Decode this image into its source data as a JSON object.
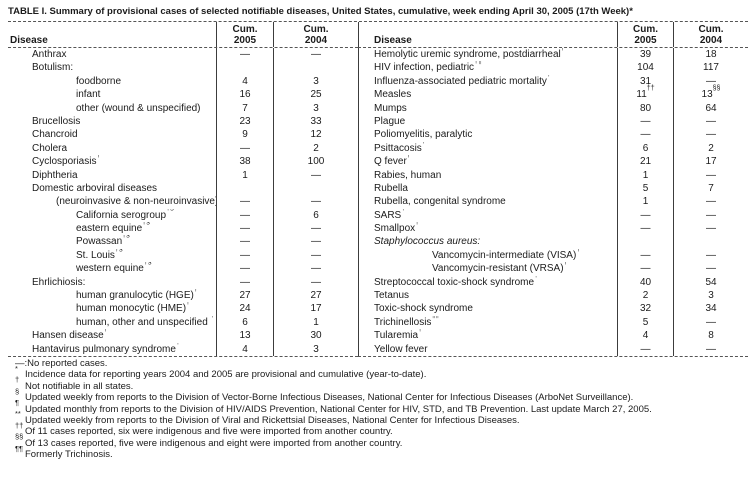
{
  "title": "TABLE I. Summary of provisional cases of selected notifiable diseases, United States, cumulative, week ending April 30, 2005 (17th Week)*",
  "header": {
    "disease": "Disease",
    "cum": "Cum.",
    "y2005": "2005",
    "y2004": "2004"
  },
  "left_rows": [
    {
      "label": "Anthrax",
      "sup": "",
      "indent": 0,
      "italic": false,
      "c2005": "—",
      "c2005_sup": "",
      "c2004": "—",
      "c2004_sup": ""
    },
    {
      "label": "Botulism:",
      "sup": "",
      "indent": 0,
      "italic": false,
      "c2005": "",
      "c2005_sup": "",
      "c2004": "",
      "c2004_sup": ""
    },
    {
      "label": "foodborne",
      "sup": "",
      "indent": 2,
      "italic": false,
      "c2005": "4",
      "c2005_sup": "",
      "c2004": "3",
      "c2004_sup": ""
    },
    {
      "label": "infant",
      "sup": "",
      "indent": 2,
      "italic": false,
      "c2005": "16",
      "c2005_sup": "",
      "c2004": "25",
      "c2004_sup": ""
    },
    {
      "label": "other (wound & unspecified)",
      "sup": "",
      "indent": 2,
      "italic": false,
      "c2005": "7",
      "c2005_sup": "",
      "c2004": "3",
      "c2004_sup": ""
    },
    {
      "label": "Brucellosis",
      "sup": "",
      "indent": 0,
      "italic": false,
      "c2005": "23",
      "c2005_sup": "",
      "c2004": "33",
      "c2004_sup": ""
    },
    {
      "label": "Chancroid",
      "sup": "",
      "indent": 0,
      "italic": false,
      "c2005": "9",
      "c2005_sup": "",
      "c2004": "12",
      "c2004_sup": ""
    },
    {
      "label": "Cholera",
      "sup": "",
      "indent": 0,
      "italic": false,
      "c2005": "—",
      "c2005_sup": "",
      "c2004": "2",
      "c2004_sup": ""
    },
    {
      "label": "Cyclosporiasis",
      "sup": "†",
      "indent": 0,
      "italic": false,
      "c2005": "38",
      "c2005_sup": "",
      "c2004": "100",
      "c2004_sup": ""
    },
    {
      "label": "Diphtheria",
      "sup": "",
      "indent": 0,
      "italic": false,
      "c2005": "1",
      "c2005_sup": "",
      "c2004": "—",
      "c2004_sup": ""
    },
    {
      "label": "Domestic arboviral diseases",
      "sup": "",
      "indent": 0,
      "italic": false,
      "c2005": "",
      "c2005_sup": "",
      "c2004": "",
      "c2004_sup": ""
    },
    {
      "label": "(neuroinvasive & non-neuroinvasive):",
      "sup": "",
      "indent": 1,
      "italic": false,
      "c2005": "—",
      "c2005_sup": "",
      "c2004": "—",
      "c2004_sup": ""
    },
    {
      "label": "California serogroup",
      "sup": "†§",
      "indent": 2,
      "italic": false,
      "c2005": "—",
      "c2005_sup": "",
      "c2004": "6",
      "c2004_sup": ""
    },
    {
      "label": "eastern equine",
      "sup": "†§",
      "indent": 2,
      "italic": false,
      "c2005": "—",
      "c2005_sup": "",
      "c2004": "—",
      "c2004_sup": ""
    },
    {
      "label": "Powassan",
      "sup": "†§",
      "indent": 2,
      "italic": false,
      "c2005": "—",
      "c2005_sup": "",
      "c2004": "—",
      "c2004_sup": ""
    },
    {
      "label": "St. Louis",
      "sup": "†§",
      "indent": 2,
      "italic": false,
      "c2005": "—",
      "c2005_sup": "",
      "c2004": "—",
      "c2004_sup": ""
    },
    {
      "label": "western equine",
      "sup": "†§",
      "indent": 2,
      "italic": false,
      "c2005": "—",
      "c2005_sup": "",
      "c2004": "—",
      "c2004_sup": ""
    },
    {
      "label": "Ehrlichiosis:",
      "sup": "",
      "indent": 0,
      "italic": false,
      "c2005": "—",
      "c2005_sup": "",
      "c2004": "—",
      "c2004_sup": ""
    },
    {
      "label": "human granulocytic (HGE)",
      "sup": "†",
      "indent": 2,
      "italic": false,
      "c2005": "27",
      "c2005_sup": "",
      "c2004": "27",
      "c2004_sup": ""
    },
    {
      "label": "human monocytic (HME)",
      "sup": "†",
      "indent": 2,
      "italic": false,
      "c2005": "24",
      "c2005_sup": "",
      "c2004": "17",
      "c2004_sup": ""
    },
    {
      "label": "human, other and unspecified ",
      "sup": "†",
      "indent": 2,
      "italic": false,
      "c2005": "6",
      "c2005_sup": "",
      "c2004": "1",
      "c2004_sup": ""
    },
    {
      "label": "Hansen disease",
      "sup": "†",
      "indent": 0,
      "italic": false,
      "c2005": "13",
      "c2005_sup": "",
      "c2004": "30",
      "c2004_sup": ""
    },
    {
      "label": "Hantavirus pulmonary syndrome",
      "sup": "†",
      "indent": 0,
      "italic": false,
      "c2005": "4",
      "c2005_sup": "",
      "c2004": "3",
      "c2004_sup": ""
    }
  ],
  "right_rows": [
    {
      "label": "Hemolytic uremic syndrome, postdiarrheal",
      "sup": "†",
      "indent": 0,
      "italic": false,
      "c2005": "39",
      "c2005_sup": "",
      "c2004": "18",
      "c2004_sup": ""
    },
    {
      "label": "HIV infection, pediatric",
      "sup": "†¶",
      "indent": 0,
      "italic": false,
      "c2005": "104",
      "c2005_sup": "",
      "c2004": "117",
      "c2004_sup": ""
    },
    {
      "label": "Influenza-associated pediatric mortality",
      "sup": "†**",
      "indent": 0,
      "italic": false,
      "c2005": "31",
      "c2005_sup": "",
      "c2004": "—",
      "c2004_sup": ""
    },
    {
      "label": "Measles",
      "sup": "",
      "indent": 0,
      "italic": false,
      "c2005": "11",
      "c2005_sup": "††",
      "c2004": "13",
      "c2004_sup": "§§"
    },
    {
      "label": "Mumps",
      "sup": "",
      "indent": 0,
      "italic": false,
      "c2005": "80",
      "c2005_sup": "",
      "c2004": "64",
      "c2004_sup": ""
    },
    {
      "label": "Plague",
      "sup": "",
      "indent": 0,
      "italic": false,
      "c2005": "—",
      "c2005_sup": "",
      "c2004": "—",
      "c2004_sup": ""
    },
    {
      "label": "Poliomyelitis, paralytic",
      "sup": "",
      "indent": 0,
      "italic": false,
      "c2005": "—",
      "c2005_sup": "",
      "c2004": "—",
      "c2004_sup": ""
    },
    {
      "label": "Psittacosis",
      "sup": "†",
      "indent": 0,
      "italic": false,
      "c2005": "6",
      "c2005_sup": "",
      "c2004": "2",
      "c2004_sup": ""
    },
    {
      "label": "Q fever",
      "sup": "†",
      "indent": 0,
      "italic": false,
      "c2005": "21",
      "c2005_sup": "",
      "c2004": "17",
      "c2004_sup": ""
    },
    {
      "label": "Rabies, human",
      "sup": "",
      "indent": 0,
      "italic": false,
      "c2005": "1",
      "c2005_sup": "",
      "c2004": "—",
      "c2004_sup": ""
    },
    {
      "label": "Rubella",
      "sup": "",
      "indent": 0,
      "italic": false,
      "c2005": "5",
      "c2005_sup": "",
      "c2004": "7",
      "c2004_sup": ""
    },
    {
      "label": "Rubella, congenital syndrome",
      "sup": "",
      "indent": 0,
      "italic": false,
      "c2005": "1",
      "c2005_sup": "",
      "c2004": "—",
      "c2004_sup": ""
    },
    {
      "label": "SARS",
      "sup": "†**",
      "indent": 0,
      "italic": false,
      "c2005": "—",
      "c2005_sup": "",
      "c2004": "—",
      "c2004_sup": ""
    },
    {
      "label": "Smallpox",
      "sup": "†",
      "indent": 0,
      "italic": false,
      "c2005": "—",
      "c2005_sup": "",
      "c2004": "—",
      "c2004_sup": ""
    },
    {
      "label": "Staphylococcus aureus:",
      "sup": "",
      "indent": 0,
      "italic": true,
      "c2005": "",
      "c2005_sup": "",
      "c2004": "",
      "c2004_sup": ""
    },
    {
      "label": "Vancomycin-intermediate (VISA)",
      "sup": "†",
      "indent": 2,
      "italic": false,
      "c2005": "—",
      "c2005_sup": "",
      "c2004": "—",
      "c2004_sup": ""
    },
    {
      "label": "Vancomycin-resistant (VRSA)",
      "sup": "†",
      "indent": 2,
      "italic": false,
      "c2005": "—",
      "c2005_sup": "",
      "c2004": "—",
      "c2004_sup": ""
    },
    {
      "label": "Streptococcal toxic-shock syndrome",
      "sup": "†",
      "indent": 0,
      "italic": false,
      "c2005": "40",
      "c2005_sup": "",
      "c2004": "54",
      "c2004_sup": ""
    },
    {
      "label": "Tetanus",
      "sup": "",
      "indent": 0,
      "italic": false,
      "c2005": "2",
      "c2005_sup": "",
      "c2004": "3",
      "c2004_sup": ""
    },
    {
      "label": "Toxic-shock syndrome",
      "sup": "",
      "indent": 0,
      "italic": false,
      "c2005": "32",
      "c2005_sup": "",
      "c2004": "34",
      "c2004_sup": ""
    },
    {
      "label": "Trichinellosis",
      "sup": "¶¶",
      "indent": 0,
      "italic": false,
      "c2005": "5",
      "c2005_sup": "",
      "c2004": "—",
      "c2004_sup": ""
    },
    {
      "label": "Tularemia",
      "sup": "†",
      "indent": 0,
      "italic": false,
      "c2005": "4",
      "c2005_sup": "",
      "c2004": "8",
      "c2004_sup": ""
    },
    {
      "label": "Yellow fever",
      "sup": "",
      "indent": 0,
      "italic": false,
      "c2005": "—",
      "c2005_sup": "",
      "c2004": "—",
      "c2004_sup": ""
    }
  ],
  "footnotes": [
    {
      "symbol": "—:",
      "raised": false,
      "text": "No reported cases."
    },
    {
      "symbol": "*",
      "raised": true,
      "text": "Incidence data for reporting years 2004 and 2005 are provisional and cumulative (year-to-date)."
    },
    {
      "symbol": "†",
      "raised": true,
      "text": "Not notifiable in all states."
    },
    {
      "symbol": "§",
      "raised": true,
      "text": "Updated weekly from reports to the Division of Vector-Borne Infectious Diseases, National Center for Infectious Diseases (ArboNet Surveillance)."
    },
    {
      "symbol": "¶",
      "raised": true,
      "text": "Updated monthly from reports to the Division of HIV/AIDS Prevention, National Center for HIV, STD, and TB Prevention. Last update March 27, 2005."
    },
    {
      "symbol": "**",
      "raised": true,
      "text": "Updated weekly from reports to the Division of Viral and Rickettsial Diseases, National Center for Infectious Diseases."
    },
    {
      "symbol": "††",
      "raised": true,
      "text": "Of 11 cases reported, six were indigenous and five were imported from another country."
    },
    {
      "symbol": "§§",
      "raised": true,
      "text": "Of 13 cases reported, five were indigenous and eight were imported from another country."
    },
    {
      "symbol": "¶¶",
      "raised": true,
      "text": "Formerly Trichinosis."
    }
  ]
}
